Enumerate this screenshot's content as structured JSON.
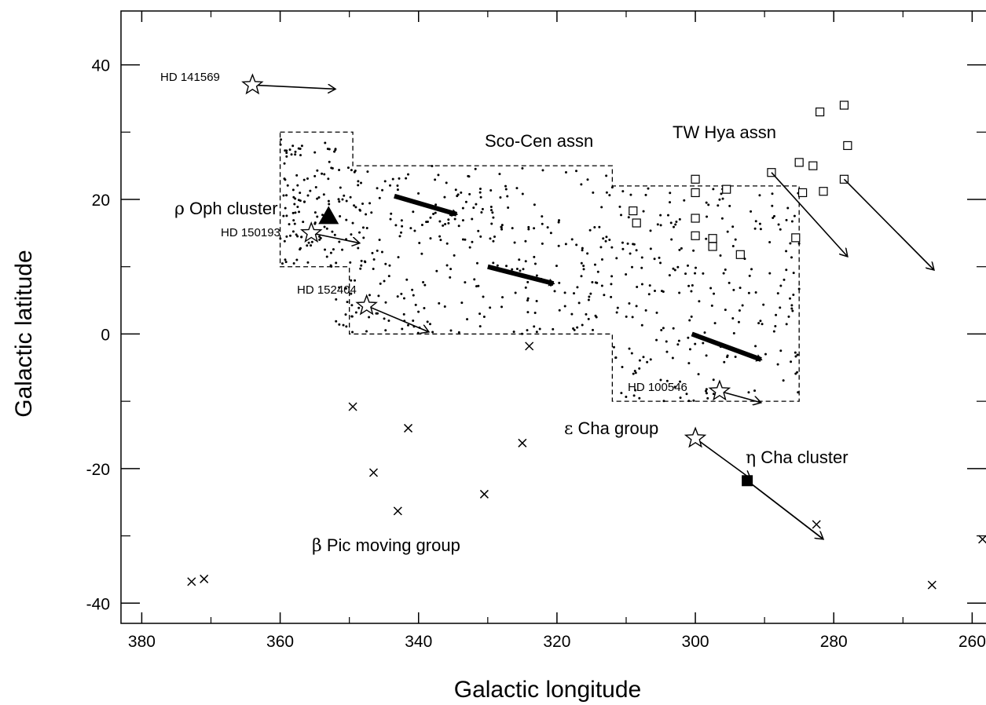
{
  "chart_data": {
    "type": "scatter",
    "xlabel": "Galactic longitude",
    "ylabel": "Galactic latitude",
    "xlim": [
      383,
      258
    ],
    "ylim": [
      -43,
      48
    ],
    "x_ticks": [
      "380",
      "360",
      "340",
      "320",
      "300",
      "280",
      "260"
    ],
    "y_ticks": [
      "40",
      "20",
      "0",
      "-20",
      "-40"
    ],
    "x_tick_values": [
      380,
      360,
      340,
      320,
      300,
      280,
      260
    ],
    "y_tick_values": [
      40,
      20,
      0,
      -20,
      -40
    ],
    "grid": false,
    "labels": {
      "oph_greek": "ρ",
      "oph_text": " Oph cluster",
      "scocen": "Sco-Cen assn",
      "twhya": "TW Hya assn",
      "echa_greek": "ε",
      "echa_text": " Cha group",
      "etacha_greek": "η",
      "etacha_text": " Cha cluster",
      "bpic_greek": "β",
      "bpic_text": " Pic moving group"
    },
    "star_labels": {
      "hd141569": "HD 141569",
      "hd150193": "HD 150193",
      "hd152404": "HD 152404",
      "hd100546": "HD 100546"
    },
    "sco_cen_boundary": [
      [
        360,
        30
      ],
      [
        349.5,
        30
      ],
      [
        349.5,
        25
      ],
      [
        312,
        25
      ],
      [
        312,
        22
      ],
      [
        285,
        22
      ],
      [
        285,
        -10
      ],
      [
        312,
        -10
      ],
      [
        312,
        0
      ],
      [
        350,
        0
      ],
      [
        350,
        10
      ],
      [
        360,
        10
      ],
      [
        360,
        30
      ]
    ],
    "sco_cen_seed": 7,
    "sco_cen_regions": [
      {
        "x": [
          352,
          360
        ],
        "y": [
          10,
          29
        ],
        "n": 110
      },
      {
        "x": [
          340,
          352
        ],
        "y": [
          0,
          25
        ],
        "n": 120
      },
      {
        "x": [
          312,
          340
        ],
        "y": [
          0,
          25
        ],
        "n": 210
      },
      {
        "x": [
          285,
          312
        ],
        "y": [
          -10,
          22
        ],
        "n": 230
      }
    ],
    "sco_cen_arrows": [
      [
        343.5,
        20.5,
        334.5,
        17.8
      ],
      [
        330,
        10,
        320.5,
        7.5
      ],
      [
        300.5,
        0,
        290.5,
        -3.8
      ]
    ],
    "tw_hya_members": [
      [
        278.5,
        34
      ],
      [
        282,
        33
      ],
      [
        278,
        28
      ],
      [
        283,
        25
      ],
      [
        285,
        25.5
      ],
      [
        289,
        24
      ],
      [
        278.5,
        23
      ],
      [
        300,
        23
      ],
      [
        284.5,
        21
      ],
      [
        300,
        21
      ],
      [
        295.5,
        21.5
      ],
      [
        281.5,
        21.2
      ],
      [
        309,
        18.3
      ],
      [
        300,
        17.2
      ],
      [
        308.5,
        16.5
      ],
      [
        300,
        14.6
      ],
      [
        297.5,
        14.2
      ],
      [
        285.5,
        14.3
      ],
      [
        297.5,
        13
      ],
      [
        293.5,
        11.8
      ]
    ],
    "tw_hya_arrows": [
      [
        289,
        24,
        278,
        11.5
      ],
      [
        278.5,
        23,
        265.5,
        9.5
      ]
    ],
    "beta_pic_members": [
      [
        372.8,
        -36.8
      ],
      [
        371,
        -36.4
      ],
      [
        349.5,
        -10.8
      ],
      [
        346.5,
        -20.6
      ],
      [
        341.5,
        -14
      ],
      [
        343,
        -26.3
      ],
      [
        330.5,
        -23.8
      ],
      [
        325,
        -16.2
      ],
      [
        324,
        -1.8
      ],
      [
        282.5,
        -28.3
      ],
      [
        265.8,
        -37.3
      ],
      [
        258.5,
        -30.5
      ]
    ],
    "stars": [
      {
        "id": "hd141569",
        "x": 364,
        "y": 37,
        "arrow": [
          364,
          37,
          352,
          36.4
        ]
      },
      {
        "id": "hd150193",
        "x": 355.5,
        "y": 15,
        "arrow": [
          355.5,
          15,
          348.5,
          13.5
        ]
      },
      {
        "id": "hd152404",
        "x": 347.5,
        "y": 4.2,
        "arrow": [
          347.5,
          4.2,
          338.5,
          0.3
        ]
      },
      {
        "id": "hd100546",
        "x": 296.5,
        "y": -8.5,
        "arrow": [
          296.5,
          -8.5,
          290.5,
          -10.2
        ]
      },
      {
        "id": "echa",
        "x": 300,
        "y": -15.5,
        "arrow": [
          300,
          -15.5,
          292,
          -21.5
        ]
      }
    ],
    "rho_oph": {
      "x": 353,
      "y": 17.5
    },
    "eta_cha": {
      "x": 292.5,
      "y": -21.8,
      "arrow": [
        292.5,
        -21.8,
        281.5,
        -30.5
      ]
    }
  }
}
